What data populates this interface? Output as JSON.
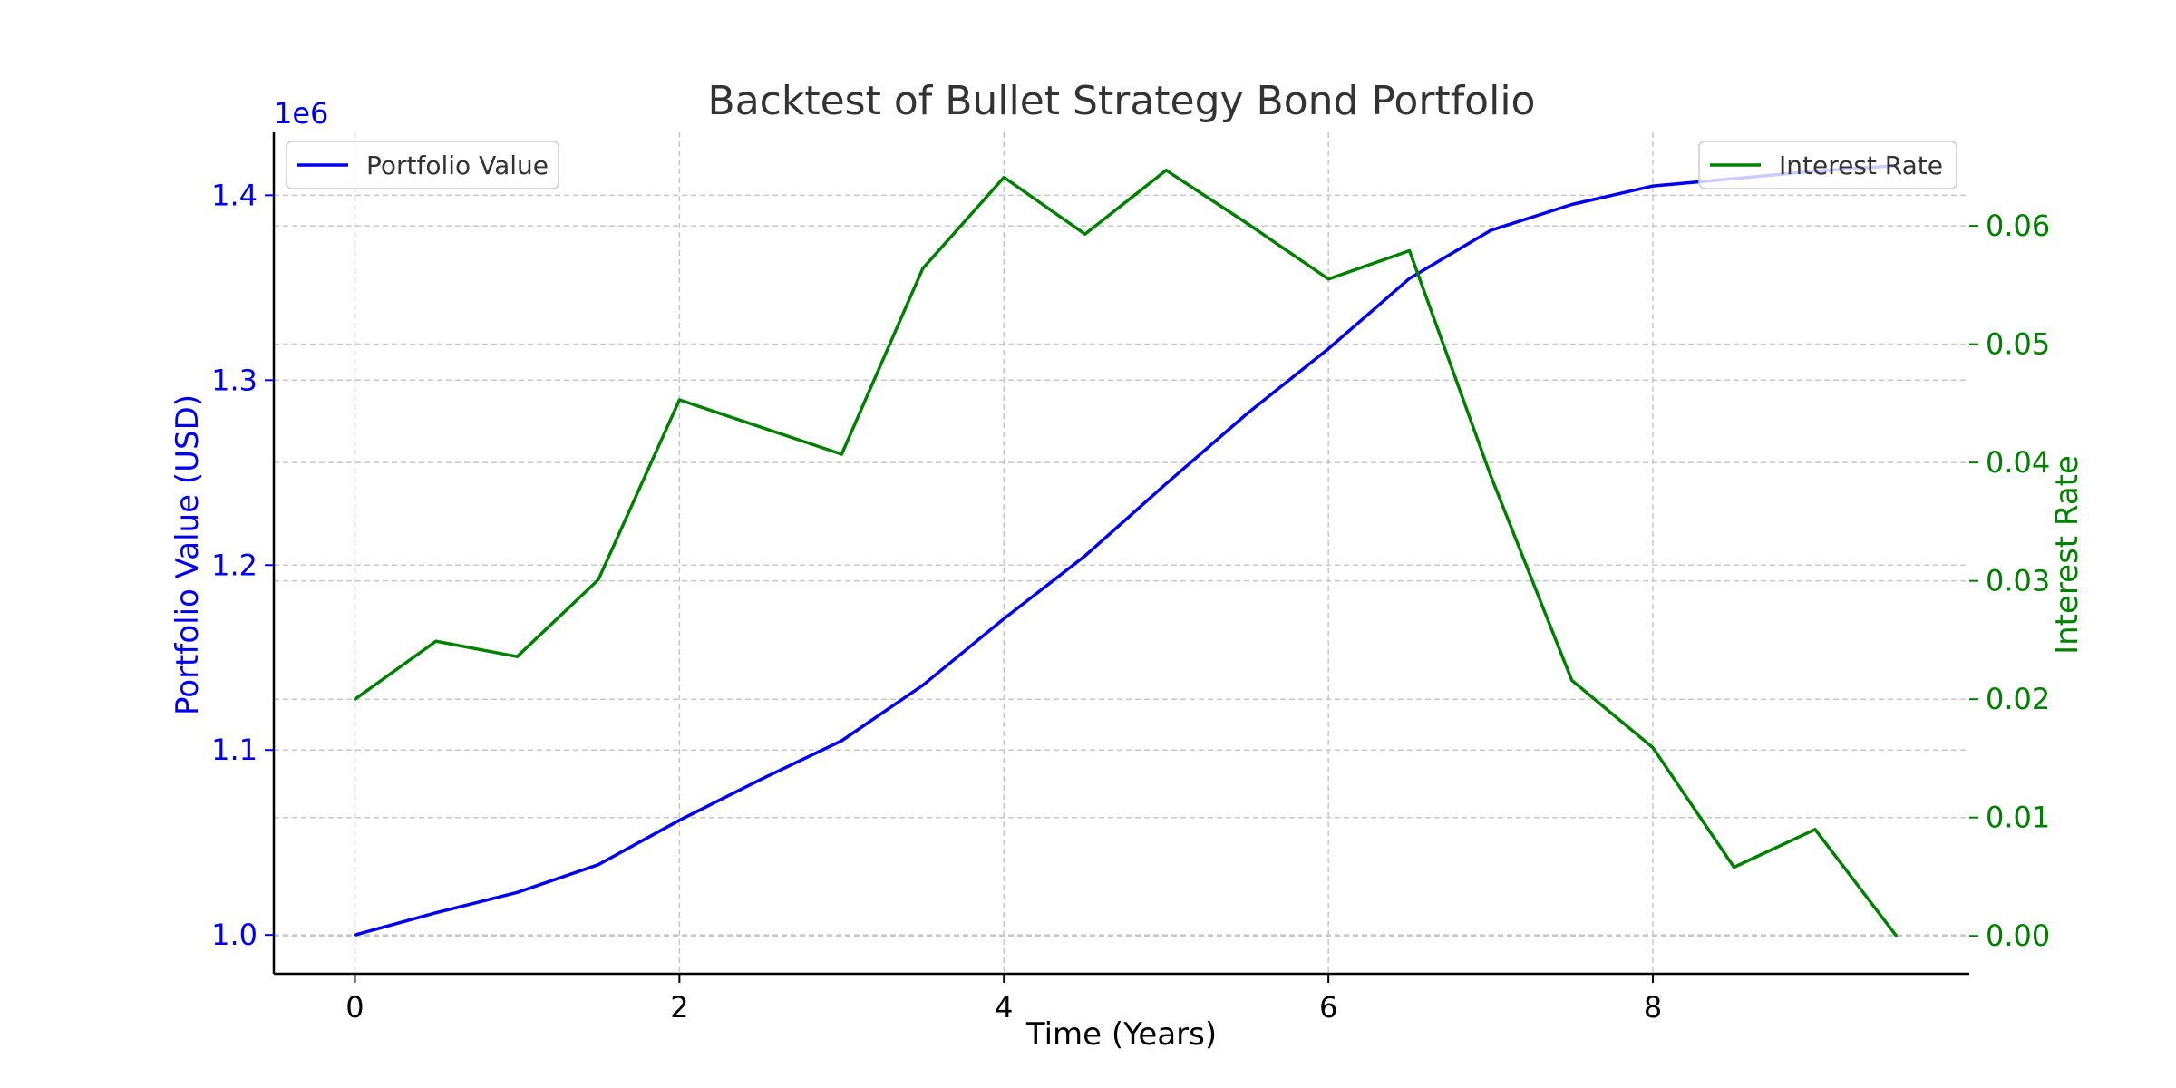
{
  "chart_data": {
    "type": "line",
    "title": "Backtest of Bullet Strategy Bond Portfolio",
    "xlabel": "Time (Years)",
    "ylabel_left": "Portfolio Value (USD)",
    "ylabel_right": "Interest Rate",
    "left_axis_offset_label": "1e6",
    "x_ticks": [
      0,
      2,
      4,
      6,
      8
    ],
    "x_tick_labels": [
      "0",
      "2",
      "4",
      "6",
      "8"
    ],
    "xlim": [
      -0.5,
      9.95
    ],
    "y_left_ticks": [
      1.0,
      1.1,
      1.2,
      1.3,
      1.4
    ],
    "y_left_tick_labels": [
      "1.0",
      "1.1",
      "1.2",
      "1.3",
      "1.4"
    ],
    "y_left_lim": [
      0.979,
      1.434
    ],
    "y_right_ticks": [
      0.0,
      0.01,
      0.02,
      0.03,
      0.04,
      0.05,
      0.06
    ],
    "y_right_tick_labels": [
      "0.00",
      "0.01",
      "0.02",
      "0.03",
      "0.04",
      "0.05",
      "0.06"
    ],
    "y_right_lim": [
      -0.0032,
      0.0679
    ],
    "x": [
      0,
      0.5,
      1,
      1.5,
      2,
      2.5,
      3,
      3.5,
      4,
      4.5,
      5,
      5.5,
      6,
      6.5,
      7,
      7.5,
      8,
      8.5,
      9,
      9.5
    ],
    "series": [
      {
        "name": "Portfolio Value",
        "axis": "left",
        "color": "#0000ee",
        "values": [
          1.0,
          1.012,
          1.023,
          1.038,
          1.062,
          1.084,
          1.105,
          1.135,
          1.171,
          1.205,
          1.244,
          1.282,
          1.317,
          1.355,
          1.381,
          1.395,
          1.405,
          1.409,
          1.413,
          1.416
        ]
      },
      {
        "name": "Interest Rate",
        "axis": "right",
        "color": "#008000",
        "values": [
          0.02,
          0.0249,
          0.0236,
          0.0301,
          0.0453,
          0.043,
          0.0407,
          0.0564,
          0.0641,
          0.0593,
          0.0647,
          0.0602,
          0.0555,
          0.0579,
          0.0389,
          0.0216,
          0.0159,
          0.0058,
          0.009,
          0.0
        ]
      }
    ],
    "grid": true,
    "legend_left": "top-left",
    "legend_right": "top-right",
    "axis_colors": {
      "left": "#0000ee",
      "right": "#008000",
      "bottom": "#000000"
    }
  }
}
